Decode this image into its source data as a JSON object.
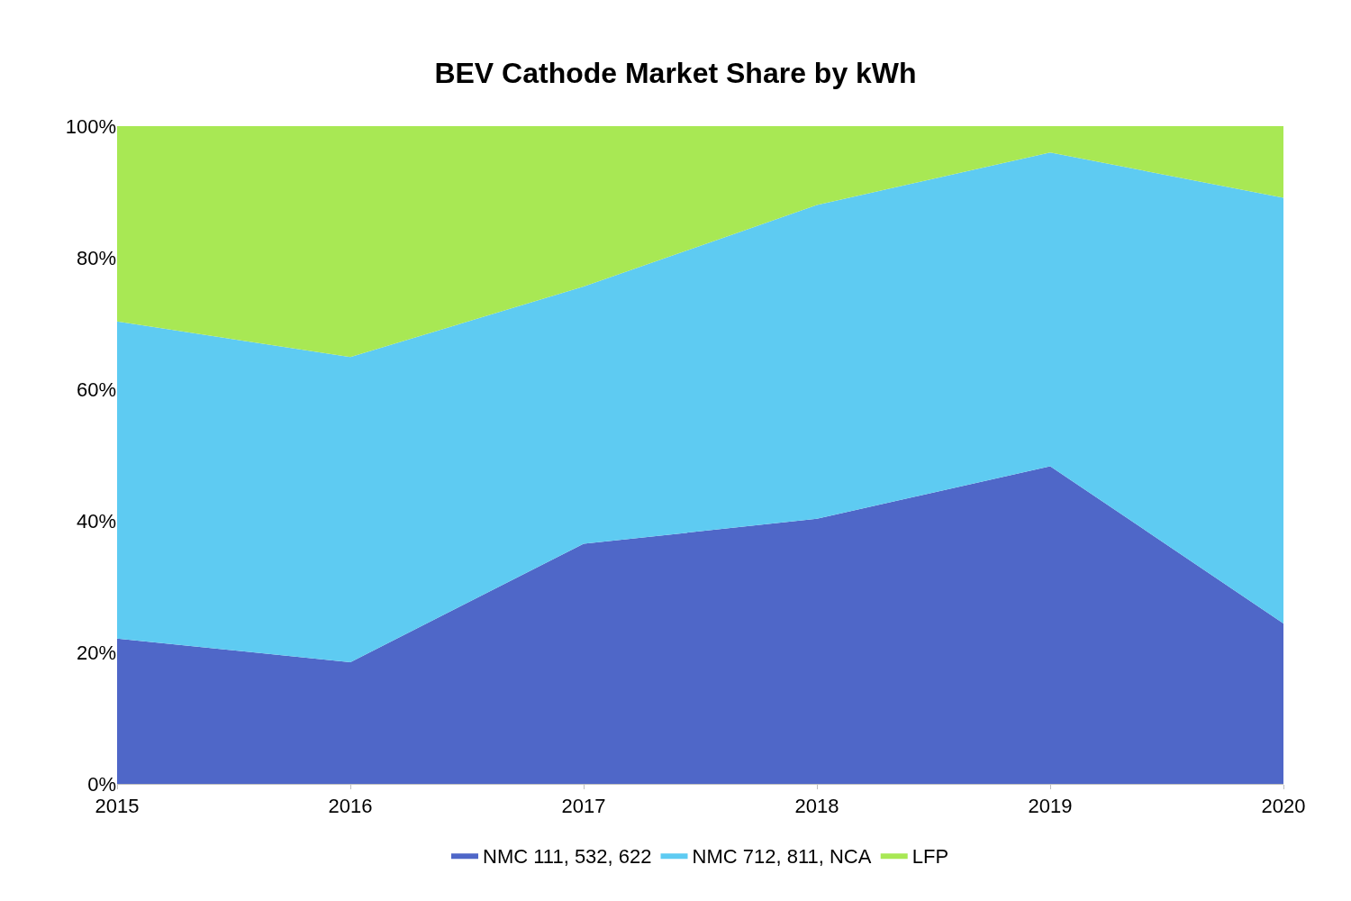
{
  "chart_data": {
    "type": "area",
    "title": "BEV Cathode Market Share by kWh",
    "stacked": true,
    "x": [
      2015,
      2016,
      2017,
      2018,
      2019,
      2020
    ],
    "series": [
      {
        "name": "NMC 111, 532, 622",
        "color": "#4f67c8",
        "values": [
          22.1,
          18.5,
          36.5,
          40.3,
          48.3,
          24.4
        ]
      },
      {
        "name": "NMC 712, 811, NCA",
        "color": "#5ecbf2",
        "values": [
          48.2,
          46.4,
          39.1,
          47.7,
          47.7,
          64.7
        ]
      },
      {
        "name": "LFP",
        "color": "#a8e854",
        "values": [
          29.7,
          35.1,
          24.4,
          12.0,
          4.0,
          10.9
        ]
      }
    ],
    "xlim": [
      2015,
      2020
    ],
    "xticks": [
      2015,
      2016,
      2017,
      2018,
      2019,
      2020
    ],
    "ylim": [
      0,
      100
    ],
    "yticks": [
      {
        "value": 0,
        "label": "0%"
      },
      {
        "value": 20,
        "label": "20%"
      },
      {
        "value": 40,
        "label": "40%"
      },
      {
        "value": 60,
        "label": "60%"
      },
      {
        "value": 80,
        "label": "80%"
      },
      {
        "value": 100,
        "label": "100%"
      }
    ],
    "legend": "bottom"
  }
}
